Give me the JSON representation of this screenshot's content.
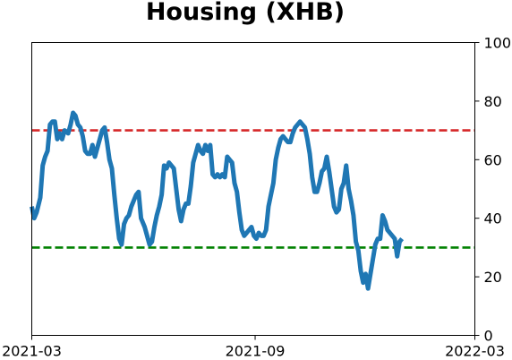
{
  "chart_data": {
    "type": "line",
    "title": "Housing (XHB)",
    "xlabel": "",
    "ylabel": "",
    "xlim": [
      "2021-03-01",
      "2022-03-01"
    ],
    "ylim": [
      0,
      100
    ],
    "y_axis_side": "right",
    "grid": false,
    "xticks": [
      {
        "date": "2021-03-01",
        "label": "2021-03"
      },
      {
        "date": "2021-09-01",
        "label": "2021-09"
      },
      {
        "date": "2022-03-01",
        "label": "2022-03"
      }
    ],
    "yticks": [
      0,
      20,
      40,
      60,
      80,
      100
    ],
    "reference_lines": [
      {
        "y": 70,
        "color": "#d62728",
        "style": "dashed"
      },
      {
        "y": 30,
        "color": "#008000",
        "style": "dashed"
      }
    ],
    "series": [
      {
        "color": "#1f77b4",
        "points": [
          [
            "2021-03-01",
            44
          ],
          [
            "2021-03-03",
            40
          ],
          [
            "2021-03-05",
            42
          ],
          [
            "2021-03-08",
            47
          ],
          [
            "2021-03-10",
            58
          ],
          [
            "2021-03-12",
            61
          ],
          [
            "2021-03-14",
            63
          ],
          [
            "2021-03-16",
            72
          ],
          [
            "2021-03-18",
            73
          ],
          [
            "2021-03-20",
            73
          ],
          [
            "2021-03-22",
            67
          ],
          [
            "2021-03-24",
            69
          ],
          [
            "2021-03-26",
            67
          ],
          [
            "2021-03-28",
            70
          ],
          [
            "2021-03-31",
            69
          ],
          [
            "2021-04-02",
            72
          ],
          [
            "2021-04-04",
            76
          ],
          [
            "2021-04-06",
            75
          ],
          [
            "2021-04-08",
            72
          ],
          [
            "2021-04-10",
            71
          ],
          [
            "2021-04-12",
            68
          ],
          [
            "2021-04-14",
            63
          ],
          [
            "2021-04-16",
            62
          ],
          [
            "2021-04-18",
            62
          ],
          [
            "2021-04-20",
            65
          ],
          [
            "2021-04-22",
            61
          ],
          [
            "2021-04-24",
            64
          ],
          [
            "2021-04-26",
            67
          ],
          [
            "2021-04-28",
            70
          ],
          [
            "2021-04-30",
            71
          ],
          [
            "2021-05-02",
            66
          ],
          [
            "2021-05-04",
            60
          ],
          [
            "2021-05-06",
            57
          ],
          [
            "2021-05-08",
            48
          ],
          [
            "2021-05-10",
            40
          ],
          [
            "2021-05-12",
            33
          ],
          [
            "2021-05-14",
            31
          ],
          [
            "2021-05-16",
            38
          ],
          [
            "2021-05-18",
            40
          ],
          [
            "2021-05-20",
            41
          ],
          [
            "2021-05-22",
            44
          ],
          [
            "2021-05-24",
            46
          ],
          [
            "2021-05-26",
            48
          ],
          [
            "2021-05-28",
            49
          ],
          [
            "2021-05-30",
            40
          ],
          [
            "2021-06-02",
            37
          ],
          [
            "2021-06-04",
            34
          ],
          [
            "2021-06-06",
            31
          ],
          [
            "2021-06-08",
            32
          ],
          [
            "2021-06-10",
            37
          ],
          [
            "2021-06-12",
            41
          ],
          [
            "2021-06-14",
            44
          ],
          [
            "2021-06-16",
            48
          ],
          [
            "2021-06-18",
            58
          ],
          [
            "2021-06-20",
            57
          ],
          [
            "2021-06-22",
            59
          ],
          [
            "2021-06-24",
            58
          ],
          [
            "2021-06-26",
            57
          ],
          [
            "2021-06-28",
            50
          ],
          [
            "2021-06-30",
            43
          ],
          [
            "2021-07-02",
            39
          ],
          [
            "2021-07-04",
            43
          ],
          [
            "2021-07-06",
            45
          ],
          [
            "2021-07-08",
            45
          ],
          [
            "2021-07-10",
            51
          ],
          [
            "2021-07-12",
            59
          ],
          [
            "2021-07-14",
            62
          ],
          [
            "2021-07-16",
            65
          ],
          [
            "2021-07-18",
            63
          ],
          [
            "2021-07-20",
            62
          ],
          [
            "2021-07-22",
            65
          ],
          [
            "2021-07-24",
            63
          ],
          [
            "2021-07-26",
            65
          ],
          [
            "2021-07-28",
            55
          ],
          [
            "2021-07-30",
            54
          ],
          [
            "2021-08-01",
            55
          ],
          [
            "2021-08-03",
            54
          ],
          [
            "2021-08-05",
            55
          ],
          [
            "2021-08-07",
            54
          ],
          [
            "2021-08-09",
            61
          ],
          [
            "2021-08-11",
            60
          ],
          [
            "2021-08-13",
            59
          ],
          [
            "2021-08-15",
            52
          ],
          [
            "2021-08-17",
            49
          ],
          [
            "2021-08-19",
            42
          ],
          [
            "2021-08-21",
            36
          ],
          [
            "2021-08-23",
            34
          ],
          [
            "2021-08-25",
            35
          ],
          [
            "2021-08-27",
            36
          ],
          [
            "2021-08-29",
            37
          ],
          [
            "2021-08-31",
            34
          ],
          [
            "2021-09-02",
            33
          ],
          [
            "2021-09-04",
            35
          ],
          [
            "2021-09-06",
            34
          ],
          [
            "2021-09-08",
            34
          ],
          [
            "2021-09-10",
            36
          ],
          [
            "2021-09-12",
            44
          ],
          [
            "2021-09-14",
            48
          ],
          [
            "2021-09-16",
            52
          ],
          [
            "2021-09-18",
            60
          ],
          [
            "2021-09-20",
            64
          ],
          [
            "2021-09-22",
            67
          ],
          [
            "2021-09-24",
            68
          ],
          [
            "2021-09-26",
            67
          ],
          [
            "2021-09-28",
            66
          ],
          [
            "2021-09-30",
            66
          ],
          [
            "2021-10-02",
            69
          ],
          [
            "2021-10-04",
            71
          ],
          [
            "2021-10-06",
            72
          ],
          [
            "2021-10-08",
            73
          ],
          [
            "2021-10-10",
            72
          ],
          [
            "2021-10-12",
            71
          ],
          [
            "2021-10-14",
            67
          ],
          [
            "2021-10-16",
            62
          ],
          [
            "2021-10-18",
            54
          ],
          [
            "2021-10-20",
            49
          ],
          [
            "2021-10-22",
            49
          ],
          [
            "2021-10-24",
            52
          ],
          [
            "2021-10-26",
            56
          ],
          [
            "2021-10-28",
            57
          ],
          [
            "2021-10-30",
            61
          ],
          [
            "2021-11-01",
            56
          ],
          [
            "2021-11-03",
            50
          ],
          [
            "2021-11-05",
            44
          ],
          [
            "2021-11-07",
            42
          ],
          [
            "2021-11-09",
            43
          ],
          [
            "2021-11-11",
            50
          ],
          [
            "2021-11-13",
            52
          ],
          [
            "2021-11-15",
            58
          ],
          [
            "2021-11-17",
            50
          ],
          [
            "2021-11-19",
            46
          ],
          [
            "2021-11-21",
            41
          ],
          [
            "2021-11-23",
            32
          ],
          [
            "2021-11-25",
            29
          ],
          [
            "2021-11-27",
            22
          ],
          [
            "2021-11-29",
            18
          ],
          [
            "2021-12-01",
            21
          ],
          [
            "2021-12-03",
            16
          ],
          [
            "2021-12-05",
            21
          ],
          [
            "2021-12-07",
            26
          ],
          [
            "2021-12-09",
            31
          ],
          [
            "2021-12-11",
            33
          ],
          [
            "2021-12-13",
            33
          ],
          [
            "2021-12-15",
            41
          ],
          [
            "2021-12-17",
            39
          ],
          [
            "2021-12-19",
            36
          ],
          [
            "2021-12-21",
            35
          ],
          [
            "2021-12-23",
            34
          ],
          [
            "2021-12-25",
            33
          ],
          [
            "2021-12-27",
            27
          ],
          [
            "2021-12-29",
            32
          ],
          [
            "2021-12-31",
            33
          ]
        ]
      }
    ]
  }
}
